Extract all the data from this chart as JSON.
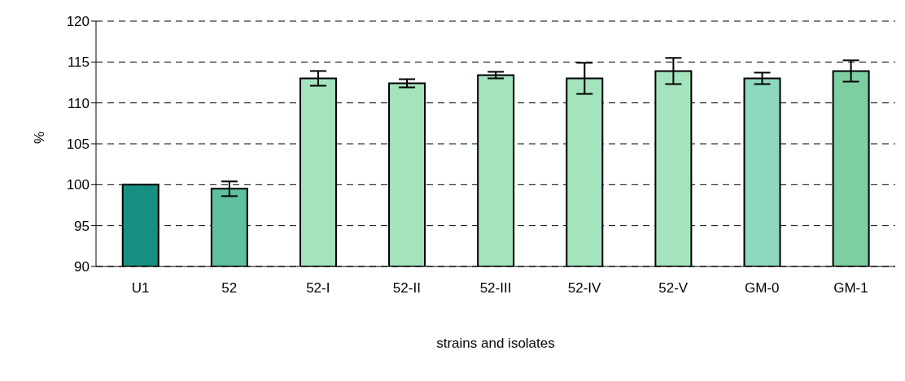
{
  "chart_data": {
    "type": "bar",
    "xlabel": "strains and isolates",
    "ylabel": "%",
    "categories": [
      "U1",
      "52",
      "52-I",
      "52-II",
      "52-III",
      "52-IV",
      "52-V",
      "GM-0",
      "GM-1"
    ],
    "values": [
      100,
      99.5,
      113,
      112.4,
      113.4,
      113,
      113.9,
      113,
      113.9
    ],
    "errors": [
      null,
      0.9,
      0.9,
      0.5,
      0.4,
      1.9,
      1.6,
      0.7,
      1.3
    ],
    "colors": [
      "#178f82",
      "#5fbfa0",
      "#a3e4bd",
      "#a3e4bd",
      "#a3e4bd",
      "#a3e4bd",
      "#a3e4bd",
      "#8fd8c0",
      "#7ccfa0"
    ],
    "ylim": [
      90,
      120
    ],
    "yticks": [
      90,
      95,
      100,
      105,
      110,
      115,
      120
    ],
    "grid": "y",
    "legend": false
  }
}
